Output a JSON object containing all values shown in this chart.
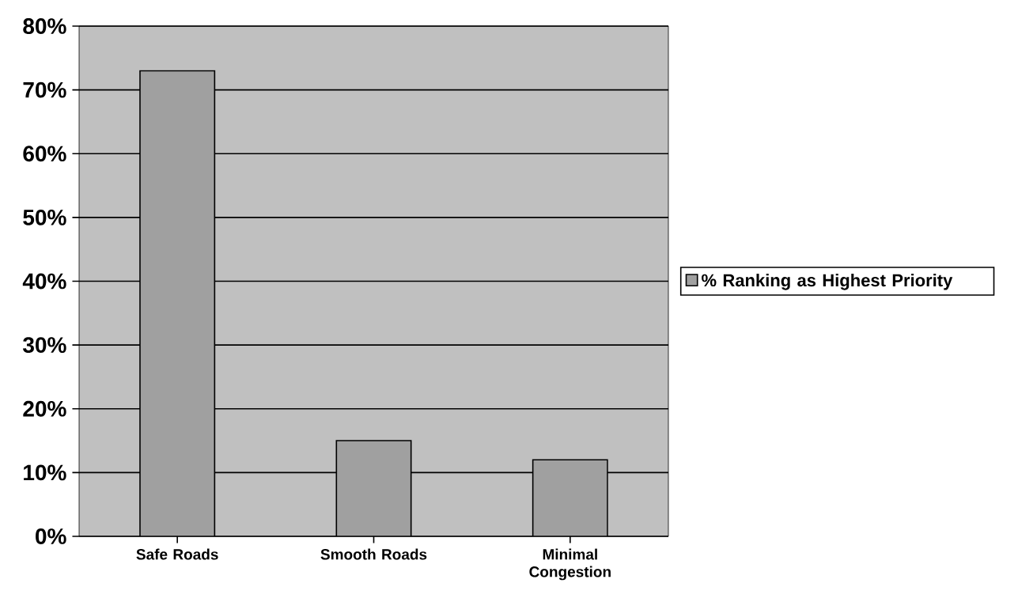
{
  "chart_data": {
    "type": "bar",
    "categories": [
      "Safe Roads",
      "Smooth Roads",
      "Minimal Congestion"
    ],
    "series": [
      {
        "name": "% Ranking as Highest Priority",
        "color": "#a0a0a0",
        "values": [
          73,
          15,
          12
        ]
      }
    ],
    "ylim": [
      0,
      80
    ],
    "yticks": [
      {
        "value": 0,
        "label": "0%"
      },
      {
        "value": 10,
        "label": "10%"
      },
      {
        "value": 20,
        "label": "20%"
      },
      {
        "value": 30,
        "label": "30%"
      },
      {
        "value": 40,
        "label": "40%"
      },
      {
        "value": 50,
        "label": "50%"
      },
      {
        "value": 60,
        "label": "60%"
      },
      {
        "value": 70,
        "label": "70%"
      },
      {
        "value": 80,
        "label": "80%"
      }
    ],
    "grid": "y",
    "legend": "right"
  }
}
